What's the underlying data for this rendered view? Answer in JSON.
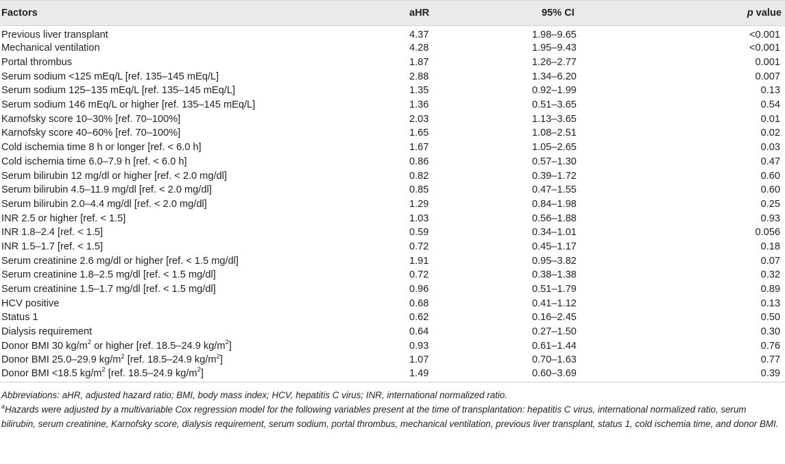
{
  "table": {
    "headers": {
      "factors": "Factors",
      "ahr": "aHR",
      "ci": "95% CI",
      "p_italic": "p",
      "p_rest": " value"
    },
    "rows": [
      {
        "factor": "Previous liver transplant",
        "ahr": "4.37",
        "ci": "1.98–9.65",
        "p": "<0.001"
      },
      {
        "factor": "Mechanical ventilation",
        "ahr": "4.28",
        "ci": "1.95–9.43",
        "p": "<0.001"
      },
      {
        "factor": "Portal thrombus",
        "ahr": "1.87",
        "ci": "1.26–2.77",
        "p": "0.001"
      },
      {
        "factor": "Serum sodium <125 mEq/L [ref. 135–145 mEq/L]",
        "ahr": "2.88",
        "ci": "1.34–6.20",
        "p": "0.007"
      },
      {
        "factor": "Serum sodium 125–135 mEq/L [ref. 135–145 mEq/L]",
        "ahr": "1.35",
        "ci": "0.92–1.99",
        "p": "0.13"
      },
      {
        "factor": "Serum sodium 146 mEq/L or higher [ref. 135–145 mEq/L]",
        "ahr": "1.36",
        "ci": "0.51–3.65",
        "p": "0.54"
      },
      {
        "factor": "Karnofsky score 10–30% [ref. 70–100%]",
        "ahr": "2.03",
        "ci": "1.13–3.65",
        "p": "0.01"
      },
      {
        "factor": "Karnofsky score 40–60% [ref. 70–100%]",
        "ahr": "1.65",
        "ci": "1.08–2.51",
        "p": "0.02"
      },
      {
        "factor": "Cold ischemia time 8 h or longer [ref. < 6.0 h]",
        "ahr": "1.67",
        "ci": "1.05–2.65",
        "p": "0.03"
      },
      {
        "factor": "Cold ischemia time 6.0–7.9 h [ref. < 6.0 h]",
        "ahr": "0.86",
        "ci": "0.57–1.30",
        "p": "0.47"
      },
      {
        "factor": "Serum bilirubin 12 mg/dl or higher [ref. < 2.0 mg/dl]",
        "ahr": "0.82",
        "ci": "0.39–1.72",
        "p": "0.60"
      },
      {
        "factor": "Serum bilirubin 4.5–11.9 mg/dl [ref. < 2.0 mg/dl]",
        "ahr": "0.85",
        "ci": "0.47–1.55",
        "p": "0.60"
      },
      {
        "factor": "Serum bilirubin 2.0–4.4 mg/dl [ref. < 2.0 mg/dl]",
        "ahr": "1.29",
        "ci": "0.84–1.98",
        "p": "0.25"
      },
      {
        "factor": "INR 2.5 or higher [ref. < 1.5]",
        "ahr": "1.03",
        "ci": "0.56–1.88",
        "p": "0.93"
      },
      {
        "factor": "INR 1.8–2.4 [ref. < 1.5]",
        "ahr": "0.59",
        "ci": "0.34–1.01",
        "p": "0.056"
      },
      {
        "factor": "INR 1.5–1.7 [ref. < 1.5]",
        "ahr": "0.72",
        "ci": "0.45–1.17",
        "p": "0.18"
      },
      {
        "factor": "Serum creatinine 2.6 mg/dl or higher [ref. < 1.5 mg/dl]",
        "ahr": "1.91",
        "ci": "0.95–3.82",
        "p": "0.07"
      },
      {
        "factor": "Serum creatinine 1.8–2.5 mg/dl [ref. < 1.5 mg/dl]",
        "ahr": "0.72",
        "ci": "0.38–1.38",
        "p": "0.32"
      },
      {
        "factor": "Serum creatinine 1.5–1.7 mg/dl [ref. < 1.5 mg/dl]",
        "ahr": "0.96",
        "ci": "0.51–1.79",
        "p": "0.89"
      },
      {
        "factor": "HCV positive",
        "ahr": "0.68",
        "ci": "0.41–1.12",
        "p": "0.13"
      },
      {
        "factor": "Status 1",
        "ahr": "0.62",
        "ci": "0.16–2.45",
        "p": "0.50"
      },
      {
        "factor": "Dialysis requirement",
        "ahr": "0.64",
        "ci": "0.27–1.50",
        "p": "0.30"
      }
    ],
    "bmi_rows": [
      {
        "pre": "Donor BMI 30 kg/m",
        "mid": " or higher [ref. 18.5–24.9 kg/m",
        "post": "]",
        "sup": "2",
        "ahr": "0.93",
        "ci": "0.61–1.44",
        "p": "0.76"
      },
      {
        "pre": "Donor BMI 25.0–29.9 kg/m",
        "mid": " [ref. 18.5–24.9 kg/m",
        "post": "]",
        "sup": "2",
        "ahr": "1.07",
        "ci": "0.70–1.63",
        "p": "0.77"
      },
      {
        "pre": "Donor BMI <18.5 kg/m",
        "mid": " [ref. 18.5–24.9 kg/m",
        "post": "]",
        "sup": "2",
        "ahr": "1.49",
        "ci": "0.60–3.69",
        "p": "0.39"
      }
    ]
  },
  "footnotes": {
    "abbreviations": "Abbreviations: aHR, adjusted hazard ratio; BMI, body mass index; HCV, hepatitis C virus; INR, international normalized ratio.",
    "note_marker": "a",
    "note": "Hazards were adjusted by a multivariable Cox regression model for the following variables present at the time of transplantation: hepatitis C virus, international normalized ratio, serum bilirubin, serum creatinine, Karnofsky score, dialysis requirement, serum sodium, portal thrombus, mechanical ventilation, previous liver transplant, status 1, cold ischemia time, and donor BMI."
  }
}
